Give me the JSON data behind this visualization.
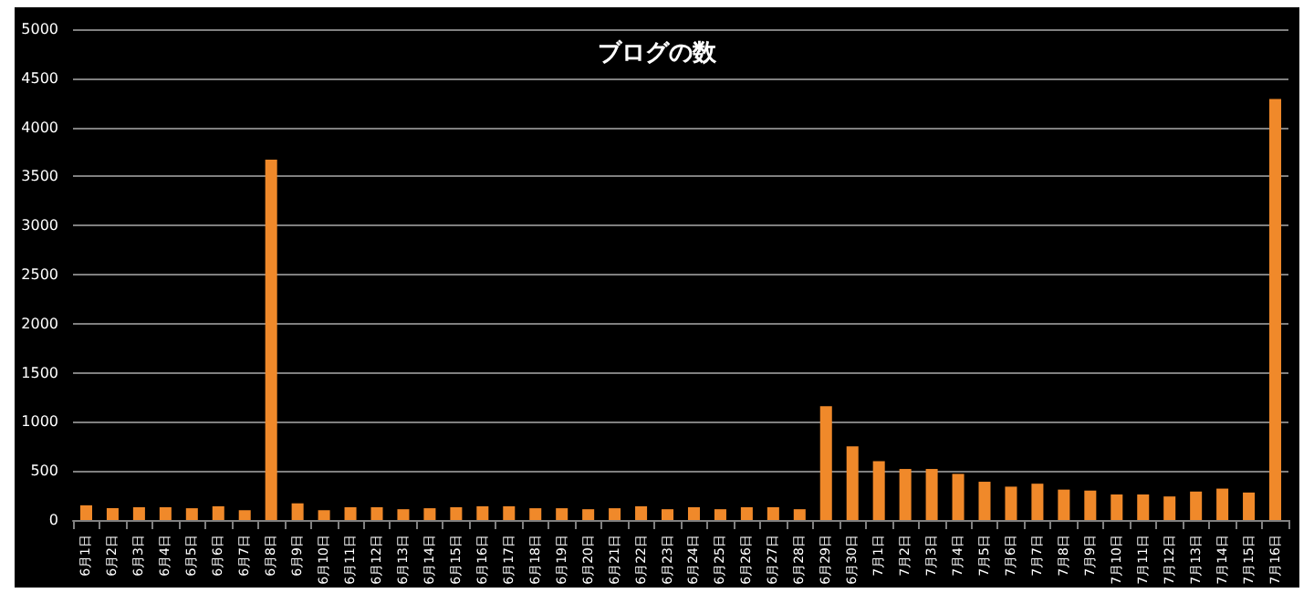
{
  "chart_data": {
    "type": "bar",
    "title": "ブログの数",
    "categories": [
      "6月1日",
      "6月2日",
      "6月3日",
      "6月4日",
      "6月5日",
      "6月6日",
      "6月7日",
      "6月8日",
      "6月9日",
      "6月10日",
      "6月11日",
      "6月12日",
      "6月13日",
      "6月14日",
      "6月15日",
      "6月16日",
      "6月17日",
      "6月18日",
      "6月19日",
      "6月20日",
      "6月21日",
      "6月22日",
      "6月23日",
      "6月24日",
      "6月25日",
      "6月26日",
      "6月27日",
      "6月28日",
      "6月29日",
      "6月30日",
      "7月1日",
      "7月2日",
      "7月3日",
      "7月4日",
      "7月5日",
      "7月6日",
      "7月7日",
      "7月8日",
      "7月9日",
      "7月10日",
      "7月11日",
      "7月12日",
      "7月13日",
      "7月14日",
      "7月15日",
      "7月16日"
    ],
    "values": [
      150,
      120,
      130,
      130,
      120,
      140,
      100,
      3670,
      170,
      100,
      130,
      130,
      110,
      120,
      130,
      140,
      140,
      120,
      120,
      110,
      120,
      140,
      110,
      130,
      110,
      130,
      130,
      110,
      1160,
      750,
      600,
      520,
      520,
      470,
      390,
      340,
      370,
      310,
      300,
      260,
      260,
      240,
      290,
      320,
      280,
      4290
    ],
    "color": "#f0892a",
    "ylim": [
      0,
      5000
    ],
    "yticks": [
      0,
      500,
      1000,
      1500,
      2000,
      2500,
      3000,
      3500,
      4000,
      4500,
      5000
    ],
    "grid": true
  }
}
